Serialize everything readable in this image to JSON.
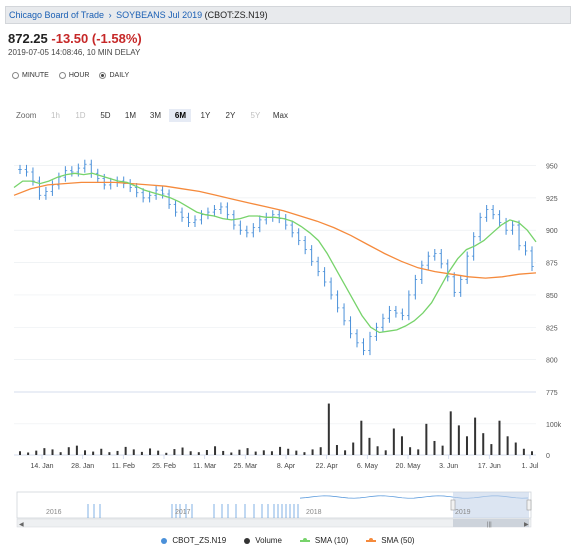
{
  "header": {
    "exchange": "Chicago Board of Trade",
    "separator": "›",
    "contract": "SOYBEANS Jul 2019",
    "symbol": "(CBOT:ZS.N19)"
  },
  "quote": {
    "price": "872.25",
    "change": "-13.50 (-1.58%)",
    "timestamp": "2019-07-05 14:08:46, 10 MIN DELAY"
  },
  "intervals": [
    {
      "label": "MINUTE",
      "selected": false
    },
    {
      "label": "HOUR",
      "selected": false
    },
    {
      "label": "DAILY",
      "selected": true
    }
  ],
  "zoom": {
    "label": "Zoom",
    "buttons": [
      {
        "label": "1h",
        "state": "disabled"
      },
      {
        "label": "1D",
        "state": "disabled"
      },
      {
        "label": "5D",
        "state": "normal"
      },
      {
        "label": "1M",
        "state": "normal"
      },
      {
        "label": "3M",
        "state": "normal"
      },
      {
        "label": "6M",
        "state": "active"
      },
      {
        "label": "1Y",
        "state": "normal"
      },
      {
        "label": "2Y",
        "state": "normal"
      },
      {
        "label": "5Y",
        "state": "disabled"
      },
      {
        "label": "Max",
        "state": "normal"
      }
    ]
  },
  "navigator": {
    "years": [
      "2016",
      "2017",
      "2018",
      "2019"
    ]
  },
  "legend": [
    {
      "label": "CBOT_ZS.N19",
      "color": "#4a90d9",
      "kind": "dot"
    },
    {
      "label": "Volume",
      "color": "#333333",
      "kind": "dot"
    },
    {
      "label": "SMA (10)",
      "color": "#77d36b",
      "kind": "line"
    },
    {
      "label": "SMA (50)",
      "color": "#f58a3c",
      "kind": "line"
    }
  ],
  "chart_data": {
    "type": "line",
    "title": "",
    "price_axis": {
      "ticks": [
        950,
        925,
        900,
        875,
        850,
        825,
        800,
        775
      ],
      "range": [
        775,
        962
      ]
    },
    "volume_axis": {
      "ticks": [
        "100k",
        "0"
      ],
      "max": 170000
    },
    "x_ticks": [
      "14. Jan",
      "28. Jan",
      "11. Feb",
      "25. Feb",
      "11. Mar",
      "25. Mar",
      "8. Apr",
      "22. Apr",
      "6. May",
      "20. May",
      "3. Jun",
      "17. Jun",
      "1. Jul"
    ],
    "series": [
      {
        "name": "CBOT_ZS.N19",
        "style": "ohlc",
        "color": "#4a90d9",
        "values": [
          947,
          945,
          938,
          927,
          930,
          935,
          941,
          946,
          945,
          948,
          951,
          944,
          940,
          935,
          937,
          938,
          936,
          933,
          929,
          925,
          927,
          931,
          928,
          920,
          914,
          910,
          906,
          908,
          912,
          914,
          916,
          918,
          912,
          904,
          900,
          898,
          902,
          908,
          910,
          912,
          909,
          904,
          898,
          892,
          885,
          876,
          868,
          860,
          850,
          840,
          830,
          820,
          813,
          807,
          818,
          825,
          832,
          838,
          836,
          834,
          850,
          862,
          873,
          880,
          882,
          874,
          864,
          852,
          862,
          880,
          895,
          910,
          916,
          912,
          906,
          900,
          904,
          888,
          884,
          872
        ]
      },
      {
        "name": "SMA (10)",
        "color": "#77d36b",
        "values": [
          933,
          938,
          938,
          936,
          938,
          941,
          943,
          944,
          943,
          944,
          942,
          940,
          938,
          937,
          934,
          931,
          929,
          927,
          925,
          922,
          918,
          914,
          912,
          911,
          909,
          908,
          909,
          911,
          911,
          910,
          910,
          909,
          907,
          903,
          898,
          892,
          882,
          870,
          858,
          846,
          834,
          825,
          821,
          822,
          823,
          826,
          830,
          836,
          844,
          856,
          868,
          878,
          885,
          888,
          892,
          898,
          904,
          908,
          906,
          900,
          891
        ]
      },
      {
        "name": "SMA (50)",
        "color": "#f58a3c",
        "values": [
          927,
          932,
          935,
          936,
          937,
          937,
          937,
          936,
          935,
          934,
          932,
          930,
          927,
          924,
          921,
          918,
          915,
          911,
          907,
          902,
          896,
          889,
          882,
          876,
          871,
          868,
          866,
          864,
          863,
          864,
          866,
          867
        ]
      }
    ],
    "volume": [
      12000,
      8000,
      14000,
      22000,
      18000,
      9000,
      25000,
      30000,
      15000,
      11000,
      20000,
      9000,
      13000,
      26000,
      18000,
      10000,
      21000,
      14000,
      7000,
      19000,
      24000,
      12000,
      9000,
      16000,
      28000,
      13000,
      8000,
      17000,
      22000,
      11000,
      15000,
      12000,
      26000,
      20000,
      14000,
      9000,
      18000,
      25000,
      165000,
      32000,
      15000,
      40000,
      110000,
      55000,
      28000,
      15000,
      85000,
      60000,
      25000,
      18000,
      100000,
      45000,
      30000,
      140000,
      95000,
      60000,
      120000,
      70000,
      35000,
      110000,
      60000,
      40000,
      20000,
      12000
    ]
  }
}
